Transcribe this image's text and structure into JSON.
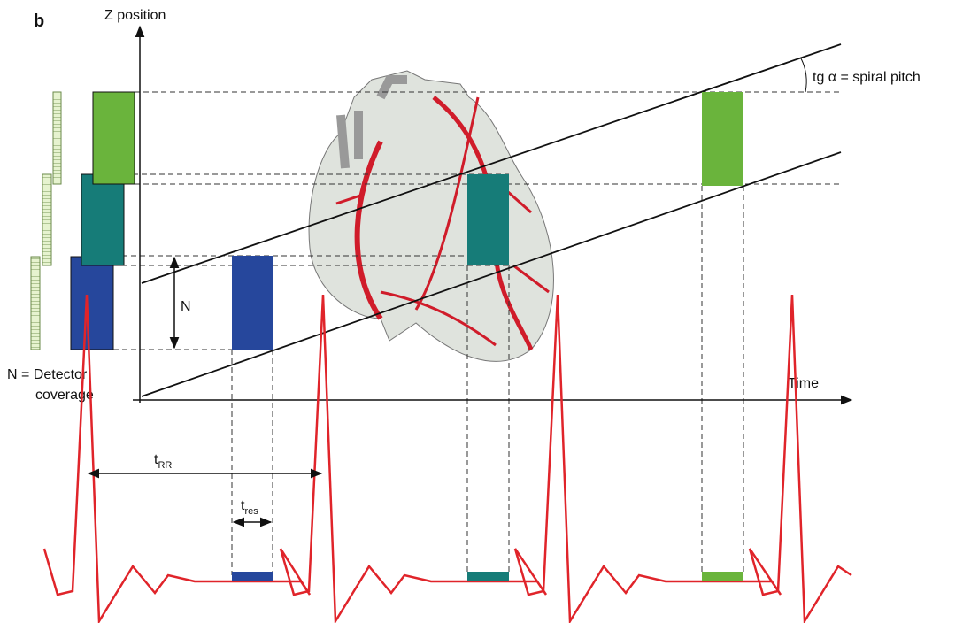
{
  "panel_label": "b",
  "axes": {
    "y_label": "Z position",
    "x_label": "Time"
  },
  "annotations": {
    "pitch": "tg α = spiral pitch",
    "n_arrow": "N",
    "coverage_line1": "N = Detector",
    "coverage_line2": "coverage",
    "t_rr": {
      "main": "t",
      "sub": "RR"
    },
    "t_res": {
      "main": "t",
      "sub": "res"
    }
  }
}
